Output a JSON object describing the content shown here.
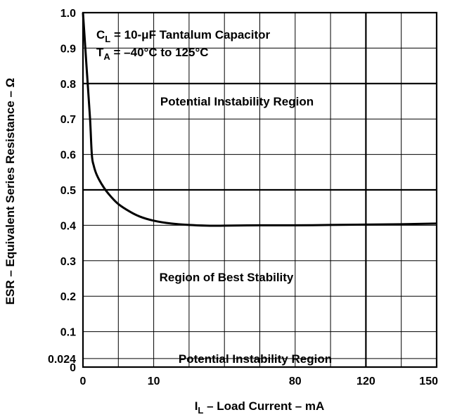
{
  "chart_data": {
    "type": "line",
    "title": "",
    "xlabel": {
      "main": "I",
      "sub": "L",
      "rest": " – Load Current – mA"
    },
    "ylabel": "ESR – Equivalent Series Resistance – Ω",
    "ylim": [
      0,
      1.0
    ],
    "y_ticks": [
      {
        "value": 0,
        "label": "0"
      },
      {
        "value": 0.024,
        "label": "0.024"
      },
      {
        "value": 0.1,
        "label": "0.1"
      },
      {
        "value": 0.2,
        "label": "0.2"
      },
      {
        "value": 0.3,
        "label": "0.3"
      },
      {
        "value": 0.4,
        "label": "0.4"
      },
      {
        "value": 0.5,
        "label": "0.5"
      },
      {
        "value": 0.6,
        "label": "0.6"
      },
      {
        "value": 0.7,
        "label": "0.7"
      },
      {
        "value": 0.8,
        "label": "0.8"
      },
      {
        "value": 0.9,
        "label": "0.9"
      },
      {
        "value": 1.0,
        "label": "1.0"
      }
    ],
    "x_ticks": [
      {
        "value": 0,
        "label": "0"
      },
      {
        "value": 10,
        "label": "10"
      },
      {
        "value": 80,
        "label": "80"
      },
      {
        "value": 120,
        "label": "120"
      },
      {
        "value": 150,
        "label": "150"
      }
    ],
    "x_divisions": 10,
    "grid": true,
    "bold_gridlines": {
      "y": [
        0.5,
        0.8
      ],
      "x": [
        120
      ]
    },
    "annotations": {
      "capacitor": {
        "symbol": "C",
        "sub": "L",
        "text": " = 10-μF Tantalum Capacitor"
      },
      "temperature": {
        "symbol": "T",
        "sub": "A",
        "text": " = –40°C to 125°C"
      },
      "upper_region": "Potential Instability Region",
      "middle_region": "Region of Best Stability",
      "lower_region": "Potential Instability Region"
    },
    "series": [
      {
        "x_division": [
          0.0,
          0.1,
          0.2,
          0.25,
          0.3,
          0.4,
          0.6,
          0.8,
          1.0,
          1.3,
          1.6,
          2.0,
          2.5,
          3.0,
          3.5,
          4.0,
          5.0,
          6.0,
          7.0,
          8.0,
          9.0,
          10.0
        ],
        "y": [
          1.0,
          0.85,
          0.7,
          0.6,
          0.57,
          0.54,
          0.505,
          0.48,
          0.46,
          0.44,
          0.425,
          0.413,
          0.405,
          0.401,
          0.399,
          0.399,
          0.4,
          0.4,
          0.401,
          0.402,
          0.403,
          0.405
        ]
      }
    ]
  }
}
